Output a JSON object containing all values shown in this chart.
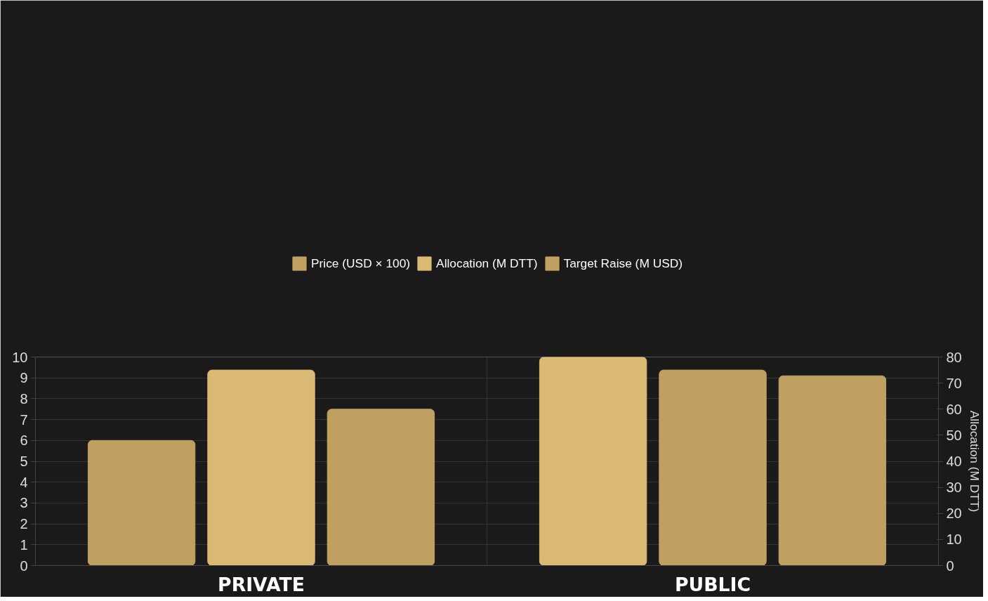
{
  "chart_data": {
    "type": "bar",
    "categories": [
      "PRIVATE",
      "PUBLIC"
    ],
    "series": [
      {
        "name": "Price (USD × 100)",
        "colors": [
          "#bfa060",
          "#dbb873"
        ],
        "values": [
          6,
          10
        ]
      },
      {
        "name": "Allocation (M DTT)",
        "colors": [
          "#dbb873",
          "#bfa060"
        ],
        "values": [
          75,
          75
        ],
        "axis": "y2"
      },
      {
        "name": "Target Raise (M USD)",
        "colors": [
          "#bfa060",
          "#bfa060"
        ],
        "values": [
          7.5,
          9.1
        ]
      }
    ],
    "ylim": [
      0,
      10
    ],
    "yticks": [
      0,
      1,
      2,
      3,
      4,
      5,
      6,
      7,
      8,
      9,
      10
    ],
    "y2lim": [
      0,
      80
    ],
    "y2ticks": [
      0,
      10,
      20,
      30,
      40,
      50,
      60,
      70,
      80
    ],
    "y2label": "Allocation (M DTT)",
    "grid": true,
    "legend": "top"
  }
}
